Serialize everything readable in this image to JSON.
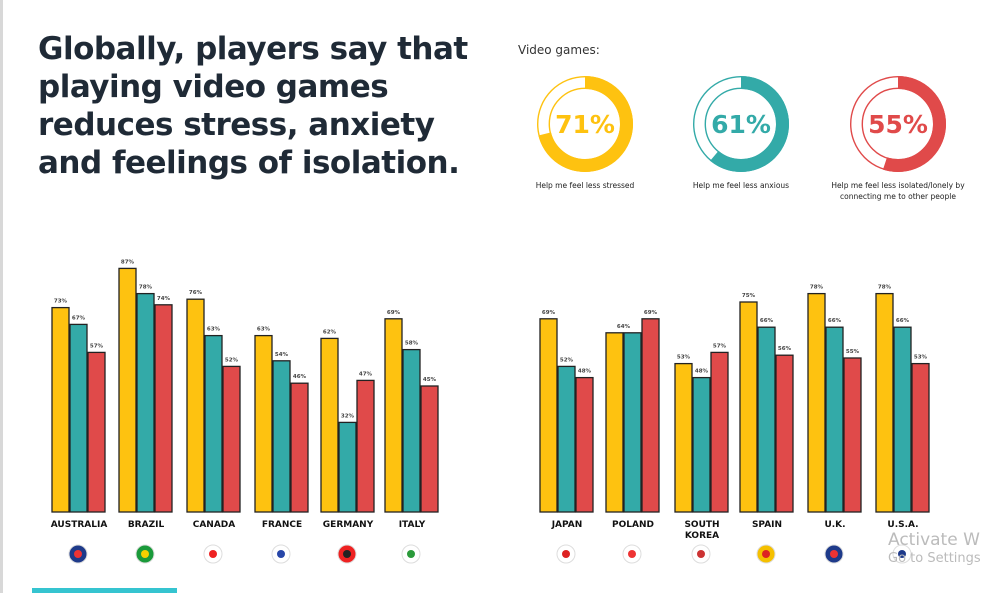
{
  "headline": "Globally, players say that playing video games reduces stress, anxiety and feelings of isolation.",
  "donuts_title": "Video games:",
  "colors": {
    "stressed": "#FEC210",
    "anxious": "#33AAA8",
    "isolated": "#E04A4A"
  },
  "donuts": [
    {
      "value": 71,
      "text": "71%",
      "label": "Help me feel less stressed",
      "color": "#FEC210"
    },
    {
      "value": 61,
      "text": "61%",
      "label": "Help me feel less anxious",
      "color": "#33AAA8"
    },
    {
      "value": 55,
      "text": "55%",
      "label": "Help me feel less isolated/lonely by connecting me to other people",
      "color": "#E04A4A"
    }
  ],
  "chart_data": {
    "type": "bar",
    "ylim": [
      0,
      100
    ],
    "grid": false,
    "categories": [
      "AUSTRALIA",
      "BRAZIL",
      "CANADA",
      "FRANCE",
      "GERMANY",
      "ITALY",
      "JAPAN",
      "POLAND",
      "SOUTH KOREA",
      "SPAIN",
      "U.K.",
      "U.S.A."
    ],
    "series": [
      {
        "color": "#FEC210",
        "values": [
          73,
          87,
          76,
          63,
          62,
          69,
          69,
          64,
          53,
          75,
          78,
          78
        ]
      },
      {
        "color": "#33AAA8",
        "values": [
          67,
          78,
          63,
          54,
          32,
          58,
          52,
          64,
          48,
          66,
          66,
          66
        ]
      },
      {
        "color": "#E04A4A",
        "values": [
          57,
          74,
          52,
          46,
          47,
          45,
          48,
          69,
          57,
          56,
          55,
          53
        ]
      }
    ],
    "data_labels": [
      [
        "73%",
        "67%",
        "57%"
      ],
      [
        "87%",
        "78%",
        "74%"
      ],
      [
        "76%",
        "63%",
        "52%"
      ],
      [
        "63%",
        "54%",
        "46%"
      ],
      [
        "62%",
        "32%",
        "47%"
      ],
      [
        "69%",
        "58%",
        "45%"
      ],
      [
        "69%",
        "52%",
        "48%"
      ],
      [
        "64%",
        "",
        "69%"
      ],
      [
        "53%",
        "48%",
        "57%"
      ],
      [
        "75%",
        "66%",
        "56%"
      ],
      [
        "78%",
        "66%",
        "55%"
      ],
      [
        "78%",
        "66%",
        "53%"
      ]
    ],
    "flags": [
      "australia-flag",
      "brazil-flag",
      "canada-flag",
      "france-flag",
      "germany-flag",
      "italy-flag",
      "japan-flag",
      "poland-flag",
      "south-korea-flag",
      "spain-flag",
      "uk-flag",
      "usa-flag"
    ]
  },
  "watermark": {
    "line1": "Activate W",
    "line2": "Go to Settings"
  }
}
